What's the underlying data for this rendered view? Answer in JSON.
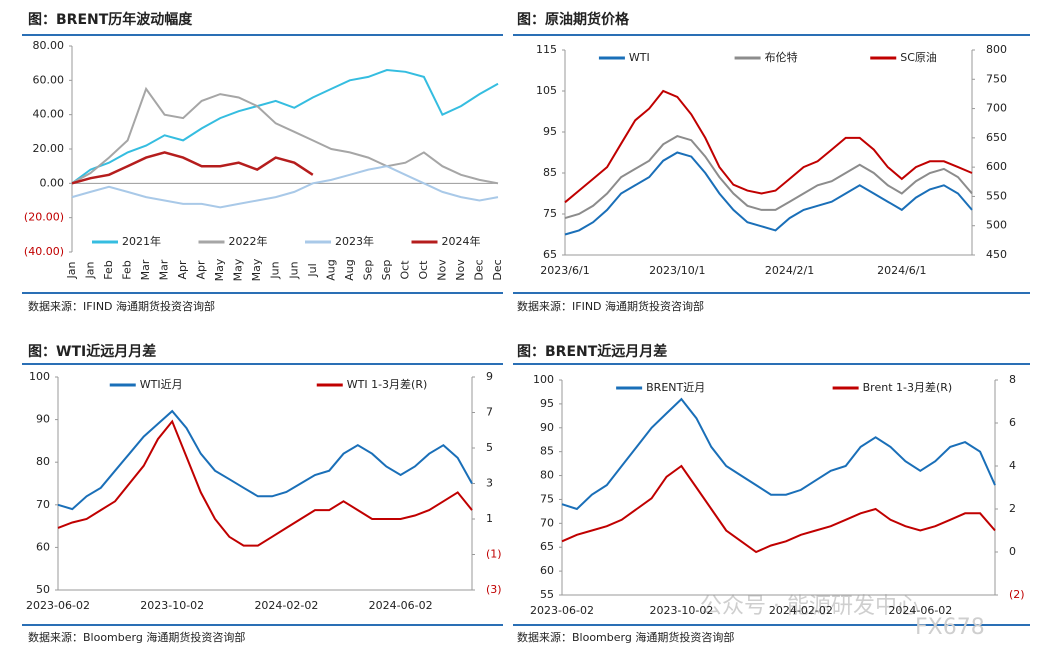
{
  "chart_data": [
    {
      "type": "line",
      "title": "图：BRENT历年波动幅度",
      "source": "数据来源：IFIND   海通期货投资咨询部",
      "categories": [
        "Jan",
        "Jan",
        "Feb",
        "Feb",
        "Mar",
        "Mar",
        "Apr",
        "Apr",
        "May",
        "May",
        "May",
        "Jun",
        "Jun",
        "Jul",
        "Aug",
        "Aug",
        "Sep",
        "Sep",
        "Oct",
        "Oct",
        "Nov",
        "Nov",
        "Dec",
        "Dec"
      ],
      "series": [
        {
          "name": "2021年",
          "color": "#35bde0",
          "values": [
            0,
            8,
            12,
            18,
            22,
            28,
            25,
            32,
            38,
            42,
            45,
            48,
            44,
            50,
            55,
            60,
            62,
            66,
            65,
            62,
            40,
            45,
            52,
            58
          ]
        },
        {
          "name": "2022年",
          "color": "#a6a6a6",
          "values": [
            0,
            6,
            15,
            25,
            55,
            40,
            38,
            48,
            52,
            50,
            45,
            35,
            30,
            25,
            20,
            18,
            15,
            10,
            12,
            18,
            10,
            5,
            2,
            0
          ]
        },
        {
          "name": "2023年",
          "color": "#a9c9e8",
          "values": [
            -8,
            -5,
            -2,
            -5,
            -8,
            -10,
            -12,
            -12,
            -14,
            -12,
            -10,
            -8,
            -5,
            0,
            2,
            5,
            8,
            10,
            5,
            0,
            -5,
            -8,
            -10,
            -8
          ]
        },
        {
          "name": "2024年",
          "color": "#b51d1d",
          "values": [
            0,
            3,
            5,
            10,
            15,
            18,
            15,
            10,
            10,
            12,
            8,
            15,
            12,
            5,
            null,
            null,
            null,
            null,
            null,
            null,
            null,
            null,
            null,
            null
          ]
        }
      ],
      "ylim": [
        -40,
        80
      ],
      "yticks": [
        {
          "value": -40,
          "label": "(40.00)"
        },
        {
          "value": -20,
          "label": "(20.00)"
        },
        {
          "value": 0,
          "label": "0.00"
        },
        {
          "value": 20,
          "label": "20.00"
        },
        {
          "value": 40,
          "label": "40.00"
        },
        {
          "value": 60,
          "label": "60.00"
        },
        {
          "value": 80,
          "label": "80.00"
        }
      ],
      "legend": "bottom"
    },
    {
      "type": "line",
      "title": "图：原油期货价格",
      "source": "数据来源：IFIND   海通期货投资咨询部",
      "categories": [
        "2023/6/1",
        null,
        null,
        null,
        null,
        null,
        null,
        null,
        "2023/10/1",
        null,
        null,
        null,
        null,
        null,
        null,
        null,
        "2024/2/1",
        null,
        null,
        null,
        null,
        null,
        null,
        null,
        "2024/6/1",
        null,
        null,
        null,
        null,
        null
      ],
      "series": [
        {
          "name": "WTI",
          "color": "#1a6fb8",
          "values": [
            70,
            71,
            73,
            76,
            80,
            82,
            84,
            88,
            90,
            89,
            85,
            80,
            76,
            73,
            72,
            71,
            74,
            76,
            77,
            78,
            80,
            82,
            80,
            78,
            76,
            79,
            81,
            82,
            80,
            76
          ]
        },
        {
          "name": "布伦特",
          "color": "#8c8c8c",
          "values": [
            74,
            75,
            77,
            80,
            84,
            86,
            88,
            92,
            94,
            93,
            89,
            84,
            80,
            77,
            76,
            76,
            78,
            80,
            82,
            83,
            85,
            87,
            85,
            82,
            80,
            83,
            85,
            86,
            84,
            80
          ]
        },
        {
          "name": "SC原油",
          "color": "#c00000",
          "axis": "y2",
          "values": [
            540,
            560,
            580,
            600,
            640,
            680,
            700,
            730,
            720,
            690,
            650,
            600,
            570,
            560,
            555,
            560,
            580,
            600,
            610,
            630,
            650,
            650,
            630,
            600,
            580,
            600,
            610,
            610,
            600,
            590
          ]
        }
      ],
      "ylim": [
        65,
        115
      ],
      "yticks": [
        65,
        75,
        85,
        95,
        105,
        115
      ],
      "y2lim": [
        450,
        800
      ],
      "y2ticks": [
        450,
        500,
        550,
        600,
        650,
        700,
        750,
        800
      ],
      "legend": "top"
    },
    {
      "type": "line",
      "title": "图：WTI近远月月差",
      "source": "数据来源：Bloomberg   海通期货投资咨询部",
      "categories": [
        "2023-06-02",
        null,
        null,
        null,
        null,
        null,
        null,
        null,
        "2023-10-02",
        null,
        null,
        null,
        null,
        null,
        null,
        null,
        "2024-02-02",
        null,
        null,
        null,
        null,
        null,
        null,
        null,
        "2024-06-02",
        null,
        null,
        null,
        null,
        null
      ],
      "series": [
        {
          "name": "WTI近月",
          "color": "#1a6fb8",
          "values": [
            70,
            69,
            72,
            74,
            78,
            82,
            86,
            89,
            92,
            88,
            82,
            78,
            76,
            74,
            72,
            72,
            73,
            75,
            77,
            78,
            82,
            84,
            82,
            79,
            77,
            79,
            82,
            84,
            81,
            75
          ]
        },
        {
          "name": "WTI 1-3月差(R)",
          "color": "#c00000",
          "axis": "y2",
          "values": [
            0.5,
            0.8,
            1.0,
            1.5,
            2.0,
            3.0,
            4.0,
            5.5,
            6.5,
            4.5,
            2.5,
            1.0,
            0.0,
            -0.5,
            -0.5,
            0.0,
            0.5,
            1.0,
            1.5,
            1.5,
            2.0,
            1.5,
            1.0,
            1.0,
            1.0,
            1.2,
            1.5,
            2.0,
            2.5,
            1.5
          ]
        }
      ],
      "ylim": [
        50,
        100
      ],
      "yticks": [
        50,
        60,
        70,
        80,
        90,
        100
      ],
      "y2lim": [
        -3,
        9
      ],
      "y2ticks": [
        {
          "value": -3,
          "label": "(3)"
        },
        {
          "value": -1,
          "label": "(1)"
        },
        1,
        3,
        5,
        7,
        9
      ],
      "legend": "top"
    },
    {
      "type": "line",
      "title": "图：BRENT近远月月差",
      "source": "数据来源：Bloomberg   海通期货投资咨询部",
      "categories": [
        "2023-06-02",
        null,
        null,
        null,
        null,
        null,
        null,
        null,
        "2023-10-02",
        null,
        null,
        null,
        null,
        null,
        null,
        null,
        "2024-02-02",
        null,
        null,
        null,
        null,
        null,
        null,
        null,
        "2024-06-02",
        null,
        null,
        null,
        null,
        null
      ],
      "series": [
        {
          "name": "BRENT近月",
          "color": "#1a6fb8",
          "values": [
            74,
            73,
            76,
            78,
            82,
            86,
            90,
            93,
            96,
            92,
            86,
            82,
            80,
            78,
            76,
            76,
            77,
            79,
            81,
            82,
            86,
            88,
            86,
            83,
            81,
            83,
            86,
            87,
            85,
            78
          ]
        },
        {
          "name": "Brent 1-3月差(R)",
          "color": "#c00000",
          "axis": "y2",
          "values": [
            0.5,
            0.8,
            1.0,
            1.2,
            1.5,
            2.0,
            2.5,
            3.5,
            4.0,
            3.0,
            2.0,
            1.0,
            0.5,
            0.0,
            0.3,
            0.5,
            0.8,
            1.0,
            1.2,
            1.5,
            1.8,
            2.0,
            1.5,
            1.2,
            1.0,
            1.2,
            1.5,
            1.8,
            1.8,
            1.0
          ]
        }
      ],
      "ylim": [
        55,
        100
      ],
      "yticks": [
        55,
        60,
        65,
        70,
        75,
        80,
        85,
        90,
        95,
        100
      ],
      "y2lim": [
        -2,
        8
      ],
      "y2ticks": [
        {
          "value": -2,
          "label": "(2)"
        },
        0,
        2,
        4,
        6,
        8
      ],
      "legend": "top"
    }
  ],
  "watermark": [
    "公众号 · 能源研发中心",
    "FX678"
  ]
}
